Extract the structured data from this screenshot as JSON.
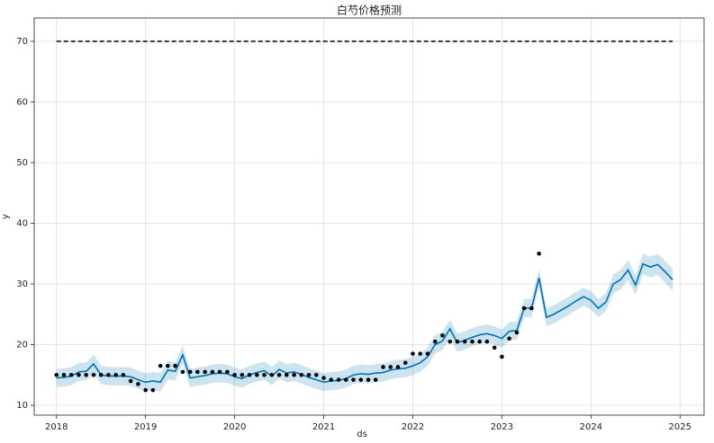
{
  "chart_data": {
    "type": "forecast",
    "title": "白芍价格预测",
    "x_label": "ds",
    "y_label": "y",
    "x": [
      2018,
      2018.083,
      2018.167,
      2018.25,
      2018.333,
      2018.417,
      2018.5,
      2018.583,
      2018.667,
      2018.75,
      2018.833,
      2018.917,
      2019,
      2019.083,
      2019.167,
      2019.25,
      2019.333,
      2019.417,
      2019.5,
      2019.583,
      2019.667,
      2019.75,
      2019.833,
      2019.917,
      2020,
      2020.083,
      2020.167,
      2020.25,
      2020.333,
      2020.417,
      2020.5,
      2020.583,
      2020.667,
      2020.75,
      2020.833,
      2020.917,
      2021,
      2021.083,
      2021.167,
      2021.25,
      2021.333,
      2021.417,
      2021.5,
      2021.583,
      2021.667,
      2021.75,
      2021.833,
      2021.917,
      2022,
      2022.083,
      2022.167,
      2022.25,
      2022.333,
      2022.417,
      2022.5,
      2022.583,
      2022.667,
      2022.75,
      2022.833,
      2022.917,
      2023,
      2023.083,
      2023.167,
      2023.25,
      2023.333,
      2023.417,
      2023.5,
      2023.583,
      2023.667,
      2023.75,
      2023.833,
      2023.917,
      2024,
      2024.083,
      2024.167,
      2024.25,
      2024.333,
      2024.417,
      2024.5,
      2024.583,
      2024.667,
      2024.75,
      2024.833,
      2024.917
    ],
    "actual": [
      15,
      15,
      15,
      15,
      15,
      15,
      15,
      15,
      15,
      15,
      14,
      13.5,
      12.5,
      12.5,
      16.5,
      16.5,
      16.5,
      15.5,
      15.5,
      15.5,
      15.5,
      15.5,
      15.5,
      15.5,
      15,
      15,
      15,
      15,
      15,
      15,
      15,
      15,
      15,
      15,
      15,
      15,
      14.5,
      14.2,
      14.2,
      14.2,
      14.2,
      14.2,
      14.2,
      14.2,
      16.3,
      16.3,
      16.3,
      17,
      18.5,
      18.5,
      18.5,
      20.5,
      21.5,
      20.5,
      20.5,
      20.5,
      20.5,
      20.5,
      20.5,
      19.5,
      18,
      21,
      22,
      26,
      26,
      35,
      null,
      null,
      null,
      null,
      null,
      null,
      null,
      null,
      null,
      null,
      null,
      null,
      null,
      null,
      null,
      null,
      null,
      null
    ],
    "forecast": [
      14.5,
      14.6,
      14.8,
      15.5,
      15.6,
      16.8,
      15,
      14.8,
      14.8,
      14.8,
      14.7,
      14.2,
      13.8,
      14,
      13.8,
      15.8,
      15.6,
      18.3,
      14.5,
      14.7,
      14.9,
      15.2,
      15.3,
      15.2,
      14.7,
      14.4,
      15,
      15.4,
      15.7,
      14.8,
      15.9,
      15.3,
      15.5,
      15.1,
      14.6,
      14.2,
      13.8,
      14,
      14.1,
      14.4,
      15,
      15.2,
      15.1,
      15.3,
      15.4,
      15.8,
      16,
      16.1,
      16.5,
      17,
      18,
      20,
      20.6,
      22.6,
      20.3,
      20.7,
      21.2,
      21.6,
      21.8,
      21.5,
      21,
      22.2,
      22.3,
      26,
      26,
      31,
      24.5,
      25,
      25.7,
      26.4,
      27.2,
      27.9,
      27.3,
      26,
      27,
      30,
      30.7,
      32.3,
      29.8,
      33.3,
      32.8,
      33.2,
      32,
      30.7
    ],
    "lower": [
      13,
      13.1,
      13.3,
      14,
      14.1,
      15.3,
      13.5,
      13.3,
      13.3,
      13.3,
      13.2,
      12.7,
      12.3,
      12.5,
      12.3,
      14.3,
      14.1,
      16.8,
      13,
      13.2,
      13.4,
      13.7,
      13.8,
      13.7,
      13.2,
      12.9,
      13.5,
      13.9,
      14.2,
      13.3,
      14.4,
      13.8,
      14,
      13.6,
      13.1,
      12.7,
      12.3,
      12.5,
      12.6,
      12.9,
      13.5,
      13.7,
      13.6,
      13.8,
      13.9,
      14.3,
      14.5,
      14.6,
      15,
      15.5,
      16.5,
      18.5,
      19.1,
      21.1,
      18.8,
      19.2,
      19.7,
      20.1,
      20.3,
      20,
      19.5,
      20.7,
      20.8,
      24.5,
      24.5,
      29.5,
      23,
      23.5,
      24.2,
      24.9,
      25.7,
      26.4,
      25.8,
      24.5,
      25.5,
      28.4,
      29.1,
      30.7,
      28.2,
      31.6,
      31.1,
      31.5,
      30.2,
      28.9
    ],
    "upper": [
      16,
      16.1,
      16.3,
      17,
      17.1,
      18.3,
      16.5,
      16.3,
      16.3,
      16.3,
      16.2,
      15.7,
      15.3,
      15.5,
      15.3,
      17.3,
      17.1,
      19.8,
      16,
      16.2,
      16.4,
      16.7,
      16.8,
      16.7,
      16.2,
      15.9,
      16.5,
      16.9,
      17.2,
      16.3,
      17.4,
      16.8,
      17,
      16.6,
      16.1,
      15.7,
      15.3,
      15.5,
      15.6,
      15.9,
      16.5,
      16.7,
      16.6,
      16.8,
      16.9,
      17.3,
      17.5,
      17.6,
      18,
      18.5,
      19.5,
      21.5,
      22.1,
      24.1,
      21.8,
      22.2,
      22.7,
      23.1,
      23.3,
      23,
      22.5,
      23.7,
      23.8,
      27.5,
      27.5,
      32.5,
      26,
      26.5,
      27.2,
      27.9,
      28.7,
      29.4,
      28.8,
      27.5,
      28.5,
      31.6,
      32.3,
      33.9,
      31.4,
      35,
      34.5,
      34.9,
      33.8,
      32.5
    ],
    "cap": [
      70,
      70,
      70,
      70,
      70,
      70,
      70,
      70,
      70,
      70,
      70,
      70,
      70,
      70,
      70,
      70,
      70,
      70,
      70,
      70,
      70,
      70,
      70,
      70,
      70,
      70,
      70,
      70,
      70,
      70,
      70,
      70,
      70,
      70,
      70,
      70,
      70,
      70,
      70,
      70,
      70,
      70,
      70,
      70,
      70,
      70,
      70,
      70,
      70,
      70,
      70,
      70,
      70,
      70,
      70,
      70,
      70,
      70,
      70,
      70,
      70,
      70,
      70,
      70,
      70,
      70,
      70,
      70,
      70,
      70,
      70,
      70,
      70,
      70,
      70,
      70,
      70,
      70,
      70,
      70,
      70,
      70,
      70,
      70
    ],
    "line_color": "#0072b2",
    "band_color": "#0072b2",
    "point_color": "#000000",
    "cap_color": "#000000",
    "xlim": [
      2017.75,
      2025.27
    ],
    "ylim": [
      8.37,
      73.85
    ],
    "xticks": [
      2018,
      2019,
      2020,
      2021,
      2022,
      2023,
      2024,
      2025
    ],
    "yticks": [
      10,
      20,
      30,
      40,
      50,
      60,
      70
    ],
    "grid": true
  }
}
